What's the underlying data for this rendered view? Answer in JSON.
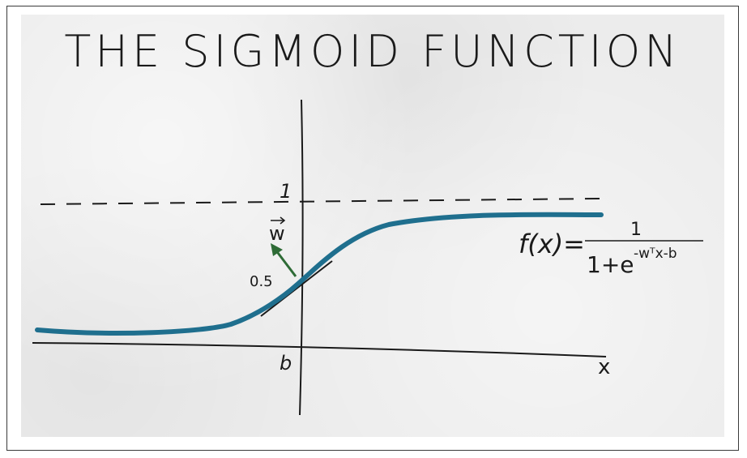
{
  "title": "THE SIGMOID FUNCTION",
  "labels": {
    "asymptote_value": "1",
    "midpoint_value": "0.5",
    "weight_vector": "w",
    "intercept": "b",
    "x_axis": "x"
  },
  "formula": {
    "lhs": "f(x)=",
    "numerator": "1",
    "denominator_base": "1+e",
    "exponent": "-wᵀx-b"
  },
  "colors": {
    "curve": "#1f6f8e",
    "arrow": "#2e6b36",
    "ink": "#1a1a1a"
  }
}
